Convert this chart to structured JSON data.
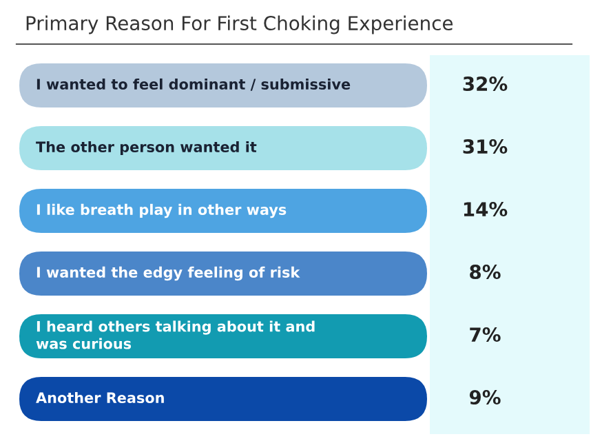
{
  "chart_data": {
    "type": "other",
    "title": "Primary Reason For First Choking Experience",
    "categories": [
      "I wanted to feel dominant / submissive",
      "The other person wanted it",
      "I like breath play in other ways",
      "I wanted the edgy feeling of risk",
      "I heard others talking about it and was curious",
      "Another Reason"
    ],
    "values": [
      32,
      31,
      14,
      8,
      7,
      9
    ],
    "value_labels": [
      "32%",
      "31%",
      "14%",
      "8%",
      "7%",
      "9%"
    ],
    "colors": [
      "#b4c8dc",
      "#a6e1e9",
      "#4ea4e2",
      "#4b86c9",
      "#129bb1",
      "#0b49a8"
    ]
  }
}
